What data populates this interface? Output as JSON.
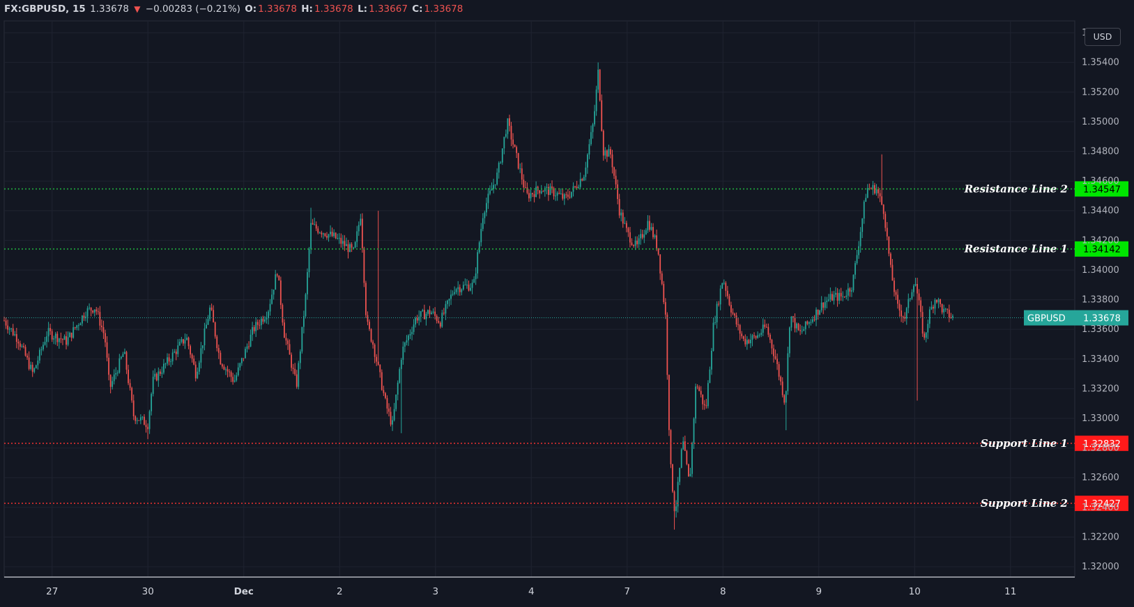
{
  "legend": {
    "symbol": "FX:GBPUSD, 15",
    "last": "1.33678",
    "change": "−0.00283 (−0.21%)",
    "o_label": "O:",
    "o": "1.33678",
    "h_label": "H:",
    "h": "1.33678",
    "l_label": "L:",
    "l": "1.33667",
    "c_label": "C:",
    "c": "1.33678"
  },
  "currency_button": "USD",
  "colors": {
    "background": "#131722",
    "up": "#26a69a",
    "down": "#ef5350",
    "resistance": "#22ab3e",
    "resistance_tag": "#00e600",
    "support": "#e03030",
    "support_tag": "#ff1a1a",
    "price_tag": "#26a69a"
  },
  "chart_data": {
    "type": "candlestick",
    "symbol": "GBPUSD",
    "interval": "15",
    "ylim": [
      1.3193,
      1.3568
    ],
    "y_ticks": [
      "1.32000",
      "1.32200",
      "1.32400",
      "1.32600",
      "1.32800",
      "1.33000",
      "1.33200",
      "1.33400",
      "1.33600",
      "1.33800",
      "1.34000",
      "1.34200",
      "1.34400",
      "1.34600",
      "1.34800",
      "1.35000",
      "1.35200",
      "1.35400",
      "1.35600"
    ],
    "x_labels": [
      {
        "label": "27",
        "pos": 0.5
      },
      {
        "label": "30",
        "pos": 1.5
      },
      {
        "label": "Dec",
        "pos": 2.5
      },
      {
        "label": "2",
        "pos": 3.5
      },
      {
        "label": "3",
        "pos": 4.5
      },
      {
        "label": "4",
        "pos": 5.5
      },
      {
        "label": "7",
        "pos": 6.5
      },
      {
        "label": "8",
        "pos": 7.5
      },
      {
        "label": "9",
        "pos": 8.5
      },
      {
        "label": "10",
        "pos": 9.5
      },
      {
        "label": "11",
        "pos": 10.5
      }
    ],
    "price_path": [
      [
        0,
        1.3366
      ],
      [
        0.15,
        1.3353
      ],
      [
        0.3,
        1.333
      ],
      [
        0.45,
        1.3358
      ],
      [
        0.65,
        1.3352
      ],
      [
        0.85,
        1.3372
      ],
      [
        0.95,
        1.3375
      ],
      [
        1.05,
        1.3355
      ],
      [
        1.1,
        1.332
      ],
      [
        1.25,
        1.3345
      ],
      [
        1.35,
        1.3302
      ],
      [
        1.5,
        1.3296
      ],
      [
        1.55,
        1.3325
      ],
      [
        1.75,
        1.3342
      ],
      [
        1.9,
        1.3355
      ],
      [
        2.0,
        1.333
      ],
      [
        2.15,
        1.3375
      ],
      [
        2.25,
        1.334
      ],
      [
        2.4,
        1.3325
      ],
      [
        2.6,
        1.336
      ],
      [
        2.75,
        1.3372
      ],
      [
        2.85,
        1.34
      ],
      [
        2.92,
        1.3358
      ],
      [
        3.05,
        1.3322
      ],
      [
        3.15,
        1.3385
      ],
      [
        3.2,
        1.343
      ],
      [
        3.45,
        1.3422
      ],
      [
        3.65,
        1.3412
      ],
      [
        3.72,
        1.3438
      ],
      [
        3.78,
        1.3365
      ],
      [
        3.85,
        1.335
      ],
      [
        3.98,
        1.331
      ],
      [
        4.05,
        1.3295
      ],
      [
        4.15,
        1.3345
      ],
      [
        4.3,
        1.3368
      ],
      [
        4.45,
        1.3372
      ],
      [
        4.55,
        1.3365
      ],
      [
        4.7,
        1.3388
      ],
      [
        4.9,
        1.339
      ],
      [
        5.0,
        1.344
      ],
      [
        5.15,
        1.3465
      ],
      [
        5.25,
        1.35
      ],
      [
        5.35,
        1.3475
      ],
      [
        5.45,
        1.345
      ],
      [
        5.6,
        1.3455
      ],
      [
        5.75,
        1.3452
      ],
      [
        5.85,
        1.3448
      ],
      [
        5.95,
        1.3455
      ],
      [
        6.05,
        1.3465
      ],
      [
        6.15,
        1.35
      ],
      [
        6.2,
        1.3535
      ],
      [
        6.25,
        1.348
      ],
      [
        6.33,
        1.3478
      ],
      [
        6.42,
        1.344
      ],
      [
        6.5,
        1.3425
      ],
      [
        6.6,
        1.3415
      ],
      [
        6.72,
        1.3433
      ],
      [
        6.82,
        1.3415
      ],
      [
        6.9,
        1.337
      ],
      [
        6.95,
        1.327
      ],
      [
        7.0,
        1.3235
      ],
      [
        7.08,
        1.3285
      ],
      [
        7.15,
        1.3255
      ],
      [
        7.22,
        1.3325
      ],
      [
        7.32,
        1.3305
      ],
      [
        7.4,
        1.3362
      ],
      [
        7.5,
        1.3395
      ],
      [
        7.58,
        1.3375
      ],
      [
        7.65,
        1.3362
      ],
      [
        7.72,
        1.3352
      ],
      [
        7.85,
        1.3355
      ],
      [
        7.95,
        1.3362
      ],
      [
        8.05,
        1.334
      ],
      [
        8.15,
        1.331
      ],
      [
        8.2,
        1.337
      ],
      [
        8.3,
        1.3357
      ],
      [
        8.4,
        1.3365
      ],
      [
        8.55,
        1.3378
      ],
      [
        8.65,
        1.3382
      ],
      [
        8.75,
        1.3382
      ],
      [
        8.85,
        1.339
      ],
      [
        8.92,
        1.342
      ],
      [
        9.0,
        1.3455
      ],
      [
        9.1,
        1.3455
      ],
      [
        9.18,
        1.344
      ],
      [
        9.25,
        1.34
      ],
      [
        9.32,
        1.3375
      ],
      [
        9.4,
        1.3368
      ],
      [
        9.5,
        1.3395
      ],
      [
        9.55,
        1.3375
      ],
      [
        9.6,
        1.3352
      ],
      [
        9.65,
        1.337
      ],
      [
        9.72,
        1.3382
      ],
      [
        9.8,
        1.3372
      ],
      [
        9.9,
        1.3368
      ]
    ],
    "spikes": [
      {
        "x": 6.2,
        "high": 1.354
      },
      {
        "x": 5.25,
        "high": 1.35
      },
      {
        "x": 9.15,
        "high": 1.3478
      },
      {
        "x": 3.2,
        "high": 1.3442
      },
      {
        "x": 3.9,
        "high": 1.344
      },
      {
        "x": 7.0,
        "low": 1.3225
      },
      {
        "x": 9.52,
        "low": 1.3312
      },
      {
        "x": 4.15,
        "low": 1.329
      },
      {
        "x": 8.15,
        "low": 1.3292
      },
      {
        "x": 1.5,
        "low": 1.3286
      }
    ],
    "levels": [
      {
        "name": "Resistance Line 2",
        "value": "1.34547",
        "y": 1.34547,
        "kind": "resistance"
      },
      {
        "name": "Resistance Line 1",
        "value": "1.34142",
        "y": 1.34142,
        "kind": "resistance"
      },
      {
        "name": "Support Line 1",
        "value": "1.32832",
        "y": 1.32832,
        "kind": "support"
      },
      {
        "name": "Support Line 2",
        "value": "1.32427",
        "y": 1.32427,
        "kind": "support"
      }
    ],
    "current": {
      "label": "GBPUSD",
      "value": "1.33678",
      "y": 1.33678
    }
  }
}
